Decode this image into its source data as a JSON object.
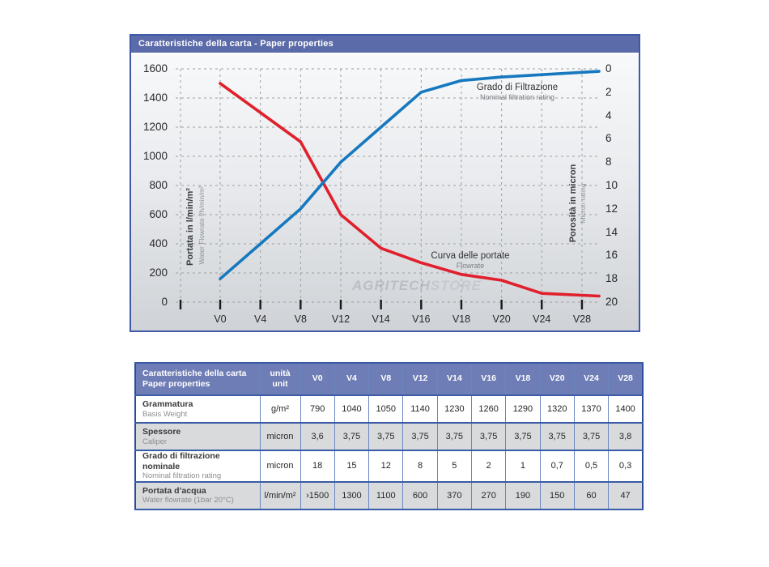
{
  "chart": {
    "title": "Caratteristiche della carta - Paper properties",
    "left_axis": {
      "label": "Portata in l/min/m²",
      "sublabel": "Water Flowrate l/h/min/m²",
      "min": 0,
      "max": 1600,
      "step": 200
    },
    "right_axis": {
      "label": "Porosità in micron",
      "sublabel": "Micron rating",
      "min": 0,
      "max": 20,
      "step": 2
    },
    "annotations": {
      "blue": {
        "title": "Grado di Filtrazione",
        "subtitle": "Nominal filtration rating"
      },
      "red": {
        "title": "Curva delle portate",
        "subtitle": "Flowrate"
      }
    }
  },
  "chart_data": {
    "type": "line",
    "categories": [
      "V0",
      "V4",
      "V8",
      "V12",
      "V14",
      "V16",
      "V18",
      "V20",
      "V24",
      "V28"
    ],
    "series": [
      {
        "name": "Curva delle portate (Flowrate)",
        "axis": "left",
        "color": "#e0202c",
        "values": [
          1500,
          1300,
          1100,
          600,
          370,
          270,
          190,
          150,
          60,
          47
        ]
      },
      {
        "name": "Grado di Filtrazione (Nominal filtration rating)",
        "axis": "right",
        "color": "#1678be",
        "values": [
          18,
          15,
          12,
          8,
          5,
          2,
          1,
          0.7,
          0.5,
          0.3
        ]
      }
    ],
    "left_axis_range": [
      0,
      1600
    ],
    "right_axis_range": [
      0,
      20
    ],
    "right_axis_inverted": true,
    "grid": "dashed",
    "title": "Caratteristiche della carta - Paper properties",
    "xlabel": "",
    "ylabel_left": "Portata in l/min/m²",
    "ylabel_right": "Porosità in micron"
  },
  "watermark": {
    "part1": "AGRITECH",
    "part2": "STORE"
  },
  "colors": {
    "red_curve": "#e0202c",
    "blue_curve": "#1678be",
    "title_bar": "#5b6aa8",
    "table_header": "#6f7db6",
    "shaded_row": "#d9dadb"
  },
  "table": {
    "header": {
      "col1": "Caratteristiche della carta",
      "col1_sub": "Paper properties",
      "unit": "unità",
      "unit_sub": "unit",
      "categories": [
        "V0",
        "V4",
        "V8",
        "V12",
        "V14",
        "V16",
        "V18",
        "V20",
        "V24",
        "V28"
      ]
    },
    "rows": [
      {
        "label": "Grammatura",
        "sublabel": "Basis Weight",
        "unit": "g/m²",
        "shaded": false,
        "values": [
          "790",
          "1040",
          "1050",
          "1140",
          "1230",
          "1260",
          "1290",
          "1320",
          "1370",
          "1400"
        ]
      },
      {
        "label": "Spessore",
        "sublabel": "Caliper",
        "unit": "micron",
        "shaded": true,
        "values": [
          "3,6",
          "3,75",
          "3,75",
          "3,75",
          "3,75",
          "3,75",
          "3,75",
          "3,75",
          "3,75",
          "3,8"
        ]
      },
      {
        "label": "Grado di filtrazione nominale",
        "sublabel": "Nominal filtration rating",
        "unit": "micron",
        "shaded": false,
        "values": [
          "18",
          "15",
          "12",
          "8",
          "5",
          "2",
          "1",
          "0,7",
          "0,5",
          "0,3"
        ]
      },
      {
        "label": "Portata d’acqua",
        "sublabel": "Water flowrate (1bar 20°C)",
        "unit": "l/min/m²",
        "shaded": true,
        "values": [
          "›1500",
          "1300",
          "1100",
          "600",
          "370",
          "270",
          "190",
          "150",
          "60",
          "47"
        ]
      }
    ]
  }
}
